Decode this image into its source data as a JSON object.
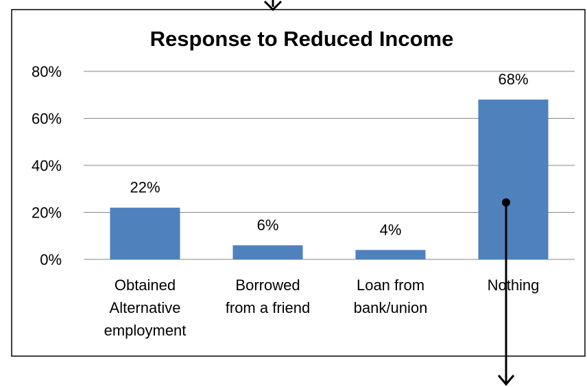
{
  "chart_data": {
    "type": "bar",
    "title": "Response to Reduced Income",
    "categories": [
      [
        "Obtained",
        "Alternative",
        "employment"
      ],
      [
        "Borrowed",
        "from a friend"
      ],
      [
        "Loan from",
        "bank/union"
      ],
      [
        "Nothing"
      ]
    ],
    "values": [
      22,
      6,
      4,
      68
    ],
    "data_labels": [
      "22%",
      "6%",
      "4%",
      "68%"
    ],
    "y_ticks": [
      "0%",
      "20%",
      "40%",
      "60%",
      "80%"
    ],
    "ylim": [
      0,
      80
    ],
    "xlabel": "",
    "ylabel": "",
    "grid": true,
    "legend": "none",
    "bar_color": "#4f81bd"
  },
  "annotation": {
    "type": "arrow",
    "color": "#000000"
  }
}
